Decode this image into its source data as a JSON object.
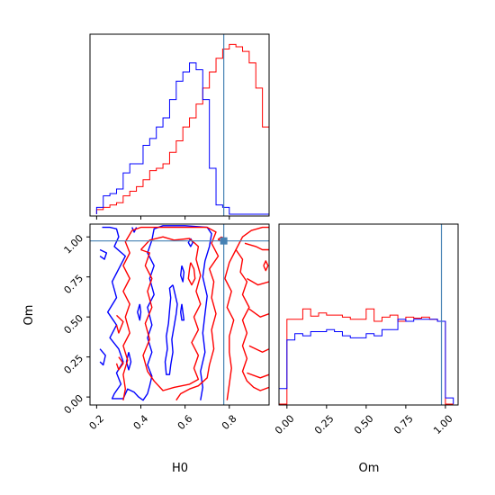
{
  "chart_data": {
    "type": "corner",
    "parameters": [
      "H0",
      "Om"
    ],
    "truth": {
      "H0": 0.775,
      "Om": 0.975
    },
    "colors": {
      "red": "#ff0000",
      "blue": "#0000ff",
      "truth": "#4682b4"
    },
    "axis_labels": {
      "x_bottom_left": "H0",
      "y_bottom_left": "Om",
      "x_bottom_right": "Om"
    },
    "ticks": {
      "H0": [
        "0.2",
        "0.4",
        "0.6",
        "0.8"
      ],
      "Om": [
        "0.00",
        "0.25",
        "0.50",
        "0.75",
        "1.00"
      ]
    },
    "ranges": {
      "H0": [
        0.17,
        0.98
      ],
      "Om": [
        -0.05,
        1.08
      ]
    },
    "hist_H0": {
      "bin_edges": [
        0.2,
        0.23,
        0.26,
        0.29,
        0.32,
        0.35,
        0.38,
        0.41,
        0.44,
        0.47,
        0.5,
        0.53,
        0.56,
        0.59,
        0.62,
        0.65,
        0.68,
        0.71,
        0.74,
        0.77,
        0.8,
        0.83,
        0.86,
        0.89,
        0.92,
        0.95,
        0.98
      ],
      "red": [
        0.02,
        0.03,
        0.04,
        0.05,
        0.08,
        0.1,
        0.12,
        0.15,
        0.19,
        0.2,
        0.22,
        0.27,
        0.32,
        0.38,
        0.42,
        0.48,
        0.55,
        0.62,
        0.68,
        0.72,
        0.74,
        0.73,
        0.71,
        0.66,
        0.55,
        0.38
      ],
      "blue": [
        0.03,
        0.08,
        0.09,
        0.11,
        0.18,
        0.22,
        0.22,
        0.3,
        0.33,
        0.38,
        0.42,
        0.5,
        0.58,
        0.62,
        0.66,
        0.63,
        0.5,
        0.2,
        0.04,
        0.03,
        0.0,
        0.0,
        0.0,
        0.0,
        0.0,
        0.0
      ]
    },
    "hist_Om": {
      "bin_edges": [
        -0.05,
        0.0,
        0.05,
        0.1,
        0.15,
        0.2,
        0.25,
        0.3,
        0.35,
        0.4,
        0.45,
        0.5,
        0.55,
        0.6,
        0.65,
        0.7,
        0.75,
        0.8,
        0.85,
        0.9,
        0.95,
        1.0,
        1.05
      ],
      "red": [
        0.0,
        0.82,
        0.82,
        0.92,
        0.85,
        0.88,
        0.86,
        0.86,
        0.84,
        0.82,
        0.82,
        0.92,
        0.8,
        0.84,
        0.86,
        0.8,
        0.84,
        0.83,
        0.84,
        0.82,
        0.8,
        0.0
      ],
      "blue": [
        0.15,
        0.62,
        0.68,
        0.66,
        0.7,
        0.7,
        0.72,
        0.7,
        0.66,
        0.64,
        0.64,
        0.68,
        0.66,
        0.72,
        0.72,
        0.82,
        0.8,
        0.82,
        0.82,
        0.82,
        0.8,
        0.06
      ]
    },
    "contours": {
      "blue": [
        [
          [
            0.225,
            1.06
          ],
          [
            0.26,
            1.06
          ],
          [
            0.29,
            1.05
          ],
          [
            0.3,
            1.0
          ],
          [
            0.28,
            0.94
          ],
          [
            0.33,
            0.88
          ],
          [
            0.3,
            0.8
          ],
          [
            0.27,
            0.72
          ],
          [
            0.29,
            0.62
          ],
          [
            0.25,
            0.53
          ],
          [
            0.29,
            0.45
          ],
          [
            0.26,
            0.37
          ],
          [
            0.3,
            0.3
          ],
          [
            0.32,
            0.22
          ],
          [
            0.29,
            0.15
          ],
          [
            0.31,
            0.08
          ],
          [
            0.28,
            0.02
          ],
          [
            0.27,
            -0.01
          ],
          [
            0.32,
            -0.01
          ],
          [
            0.34,
            0.05
          ],
          [
            0.37,
            0.03
          ],
          [
            0.39,
            0.0
          ],
          [
            0.41,
            -0.02
          ],
          [
            0.43,
            0.02
          ],
          [
            0.44,
            0.07
          ],
          [
            0.45,
            0.13
          ],
          [
            0.43,
            0.2
          ],
          [
            0.45,
            0.28
          ],
          [
            0.43,
            0.37
          ],
          [
            0.45,
            0.45
          ],
          [
            0.43,
            0.56
          ],
          [
            0.46,
            0.64
          ],
          [
            0.44,
            0.74
          ],
          [
            0.46,
            0.82
          ],
          [
            0.43,
            0.9
          ],
          [
            0.45,
            0.98
          ],
          [
            0.46,
            1.05
          ],
          [
            0.5,
            1.07
          ],
          [
            0.6,
            1.07
          ],
          [
            0.7,
            1.06
          ],
          [
            0.72,
            1.02
          ],
          [
            0.71,
            0.94
          ],
          [
            0.69,
            0.85
          ],
          [
            0.68,
            0.75
          ],
          [
            0.7,
            0.63
          ],
          [
            0.69,
            0.52
          ],
          [
            0.68,
            0.4
          ],
          [
            0.69,
            0.28
          ],
          [
            0.67,
            0.16
          ],
          [
            0.68,
            0.06
          ],
          [
            0.67,
            -0.02
          ]
        ],
        [
          [
            0.545,
            0.7
          ],
          [
            0.555,
            0.64
          ],
          [
            0.565,
            0.58
          ],
          [
            0.56,
            0.52
          ],
          [
            0.55,
            0.44
          ],
          [
            0.54,
            0.36
          ],
          [
            0.545,
            0.28
          ],
          [
            0.535,
            0.2
          ],
          [
            0.53,
            0.14
          ],
          [
            0.515,
            0.14
          ],
          [
            0.51,
            0.22
          ],
          [
            0.52,
            0.3
          ],
          [
            0.515,
            0.38
          ],
          [
            0.525,
            0.46
          ],
          [
            0.53,
            0.54
          ],
          [
            0.535,
            0.62
          ],
          [
            0.53,
            0.68
          ],
          [
            0.545,
            0.7
          ]
        ],
        [
          [
            0.585,
            0.58
          ],
          [
            0.59,
            0.53
          ],
          [
            0.595,
            0.48
          ],
          [
            0.585,
            0.48
          ],
          [
            0.58,
            0.53
          ],
          [
            0.585,
            0.58
          ]
        ],
        [
          [
            0.585,
            0.82
          ],
          [
            0.595,
            0.78
          ],
          [
            0.59,
            0.72
          ],
          [
            0.58,
            0.76
          ],
          [
            0.585,
            0.82
          ]
        ],
        [
          [
            0.395,
            0.58
          ],
          [
            0.4,
            0.53
          ],
          [
            0.395,
            0.48
          ],
          [
            0.385,
            0.53
          ],
          [
            0.395,
            0.58
          ]
        ],
        [
          [
            0.625,
            0.99
          ],
          [
            0.635,
            0.965
          ],
          [
            0.625,
            0.94
          ],
          [
            0.615,
            0.965
          ],
          [
            0.625,
            0.99
          ]
        ],
        [
          [
            0.215,
            0.92
          ],
          [
            0.245,
            0.9
          ],
          [
            0.235,
            0.86
          ],
          [
            0.215,
            0.88
          ]
        ],
        [
          [
            0.215,
            0.3
          ],
          [
            0.24,
            0.26
          ],
          [
            0.23,
            0.2
          ],
          [
            0.215,
            0.22
          ]
        ],
        [
          [
            0.345,
            0.28
          ],
          [
            0.355,
            0.22
          ],
          [
            0.345,
            0.17
          ],
          [
            0.335,
            0.22
          ],
          [
            0.345,
            0.28
          ]
        ],
        [
          [
            0.36,
            1.06
          ],
          [
            0.37,
            1.03
          ],
          [
            0.38,
            1.06
          ]
        ]
      ],
      "red": [
        [
          [
            0.32,
            -0.02
          ],
          [
            0.33,
            0.05
          ],
          [
            0.32,
            0.14
          ],
          [
            0.34,
            0.23
          ],
          [
            0.32,
            0.32
          ],
          [
            0.35,
            0.4
          ],
          [
            0.33,
            0.5
          ],
          [
            0.35,
            0.58
          ],
          [
            0.32,
            0.66
          ],
          [
            0.35,
            0.74
          ],
          [
            0.32,
            0.82
          ],
          [
            0.35,
            0.9
          ],
          [
            0.33,
            0.97
          ],
          [
            0.36,
            1.04
          ],
          [
            0.4,
            1.06
          ],
          [
            0.55,
            1.06
          ],
          [
            0.7,
            1.06
          ],
          [
            0.74,
            1.03
          ],
          [
            0.72,
            0.96
          ],
          [
            0.75,
            0.88
          ],
          [
            0.71,
            0.8
          ],
          [
            0.73,
            0.72
          ],
          [
            0.72,
            0.62
          ],
          [
            0.74,
            0.52
          ],
          [
            0.72,
            0.42
          ],
          [
            0.73,
            0.3
          ],
          [
            0.71,
            0.2
          ],
          [
            0.7,
            0.12
          ],
          [
            0.66,
            0.07
          ],
          [
            0.62,
            0.05
          ],
          [
            0.58,
            0.02
          ],
          [
            0.56,
            -0.02
          ]
        ],
        [
          [
            0.4,
            0.92
          ],
          [
            0.44,
            0.9
          ],
          [
            0.42,
            0.82
          ],
          [
            0.45,
            0.74
          ],
          [
            0.43,
            0.66
          ],
          [
            0.45,
            0.56
          ],
          [
            0.42,
            0.46
          ],
          [
            0.44,
            0.36
          ],
          [
            0.41,
            0.26
          ],
          [
            0.43,
            0.16
          ],
          [
            0.46,
            0.1
          ],
          [
            0.5,
            0.04
          ],
          [
            0.55,
            0.06
          ],
          [
            0.62,
            0.08
          ],
          [
            0.66,
            0.11
          ],
          [
            0.64,
            0.18
          ],
          [
            0.66,
            0.26
          ],
          [
            0.63,
            0.34
          ],
          [
            0.66,
            0.42
          ],
          [
            0.64,
            0.5
          ],
          [
            0.67,
            0.58
          ],
          [
            0.65,
            0.66
          ],
          [
            0.67,
            0.76
          ],
          [
            0.65,
            0.86
          ],
          [
            0.66,
            0.94
          ],
          [
            0.62,
            0.99
          ],
          [
            0.55,
            0.98
          ],
          [
            0.5,
            1.0
          ],
          [
            0.44,
            0.98
          ],
          [
            0.4,
            0.92
          ]
        ],
        [
          [
            0.79,
            -0.02
          ],
          [
            0.8,
            0.08
          ],
          [
            0.81,
            0.18
          ],
          [
            0.8,
            0.28
          ],
          [
            0.8,
            0.38
          ],
          [
            0.82,
            0.48
          ],
          [
            0.79,
            0.56
          ],
          [
            0.81,
            0.66
          ],
          [
            0.78,
            0.74
          ],
          [
            0.8,
            0.84
          ],
          [
            0.83,
            0.92
          ],
          [
            0.86,
            1.0
          ],
          [
            0.9,
            1.04
          ],
          [
            0.95,
            1.06
          ],
          [
            0.98,
            1.06
          ]
        ],
        [
          [
            0.83,
            0.92
          ],
          [
            0.86,
            0.86
          ],
          [
            0.85,
            0.78
          ],
          [
            0.88,
            0.72
          ],
          [
            0.86,
            0.64
          ],
          [
            0.89,
            0.56
          ],
          [
            0.86,
            0.48
          ],
          [
            0.88,
            0.4
          ],
          [
            0.86,
            0.32
          ],
          [
            0.88,
            0.24
          ],
          [
            0.86,
            0.16
          ],
          [
            0.88,
            0.1
          ],
          [
            0.91,
            0.06
          ],
          [
            0.94,
            0.04
          ],
          [
            0.98,
            0.06
          ]
        ],
        [
          [
            0.87,
            0.96
          ],
          [
            0.92,
            0.94
          ],
          [
            0.95,
            0.92
          ],
          [
            0.98,
            0.92
          ]
        ],
        [
          [
            0.88,
            0.74
          ],
          [
            0.93,
            0.7
          ],
          [
            0.98,
            0.72
          ]
        ],
        [
          [
            0.89,
            0.55
          ],
          [
            0.94,
            0.5
          ],
          [
            0.98,
            0.52
          ]
        ],
        [
          [
            0.89,
            0.32
          ],
          [
            0.95,
            0.28
          ],
          [
            0.98,
            0.3
          ]
        ],
        [
          [
            0.88,
            0.15
          ],
          [
            0.94,
            0.12
          ],
          [
            0.98,
            0.14
          ]
        ],
        [
          [
            0.955,
            0.82
          ],
          [
            0.965,
            0.79
          ],
          [
            0.975,
            0.82
          ],
          [
            0.965,
            0.85
          ],
          [
            0.955,
            0.82
          ]
        ],
        [
          [
            0.625,
            0.84
          ],
          [
            0.64,
            0.8
          ],
          [
            0.645,
            0.74
          ],
          [
            0.63,
            0.7
          ],
          [
            0.615,
            0.74
          ],
          [
            0.62,
            0.8
          ],
          [
            0.625,
            0.84
          ]
        ],
        [
          [
            0.765,
            1.0
          ],
          [
            0.78,
            0.985
          ],
          [
            0.765,
            0.97
          ],
          [
            0.75,
            0.985
          ],
          [
            0.765,
            1.0
          ]
        ],
        [
          [
            0.29,
            0.51
          ],
          [
            0.32,
            0.47
          ],
          [
            0.3,
            0.4
          ],
          [
            0.29,
            0.45
          ]
        ],
        [
          [
            0.3,
            0.25
          ],
          [
            0.32,
            0.21
          ],
          [
            0.3,
            0.17
          ],
          [
            0.29,
            0.21
          ]
        ]
      ]
    }
  }
}
